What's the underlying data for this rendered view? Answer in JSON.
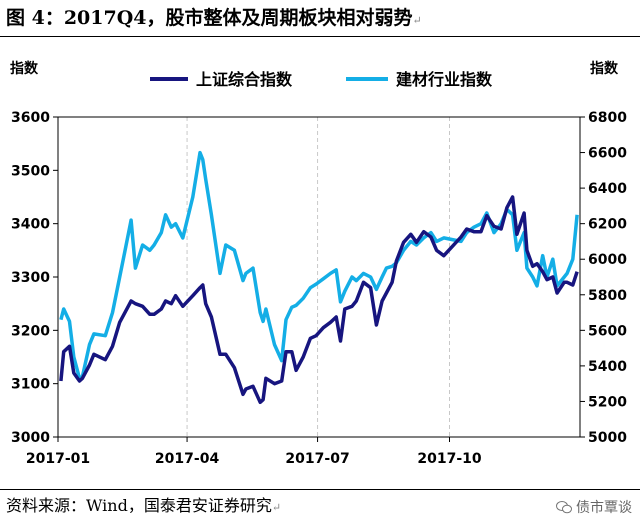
{
  "header": {
    "title": "图 4：2017Q4，股市整体及周期板块相对弱势",
    "return_mark": "↵"
  },
  "footer": {
    "source": "资料来源：Wind，国泰君安证券研究",
    "return_mark": "↵",
    "watermark": "债市覃谈"
  },
  "colors": {
    "shanghai": "#17157f",
    "building": "#14aee6",
    "grid": "#c8c8c8"
  },
  "chart_data": {
    "type": "line",
    "y_left_label": "指数",
    "y_right_label": "指数",
    "y_left_range": [
      3000,
      3600
    ],
    "y_right_range": [
      5000,
      6800
    ],
    "y_left_ticks": [
      "3000",
      "3100",
      "3200",
      "3300",
      "3400",
      "3500",
      "3600"
    ],
    "y_right_ticks": [
      "5000",
      "5200",
      "5400",
      "5600",
      "5800",
      "6000",
      "6200",
      "6400",
      "6600",
      "6800"
    ],
    "x_ticks": [
      "2017-01",
      "2017-04",
      "2017-07",
      "2017-10"
    ],
    "x_tick_dates": [
      "2017-01-01",
      "2017-04-01",
      "2017-07-01",
      "2017-10-01"
    ],
    "x_range": [
      "2017-01-01",
      "2017-12-31"
    ],
    "grid": "vertical dashed",
    "legend": "top",
    "series": [
      {
        "name": "上证综合指数",
        "axis": "left",
        "color": "#17157f",
        "points": [
          [
            "2017-01-03",
            3105
          ],
          [
            "2017-01-05",
            3160
          ],
          [
            "2017-01-09",
            3170
          ],
          [
            "2017-01-12",
            3120
          ],
          [
            "2017-01-16",
            3105
          ],
          [
            "2017-01-18",
            3110
          ],
          [
            "2017-01-23",
            3135
          ],
          [
            "2017-01-26",
            3155
          ],
          [
            "2017-02-03",
            3145
          ],
          [
            "2017-02-08",
            3170
          ],
          [
            "2017-02-13",
            3215
          ],
          [
            "2017-02-16",
            3230
          ],
          [
            "2017-02-21",
            3255
          ],
          [
            "2017-02-24",
            3250
          ],
          [
            "2017-03-01",
            3245
          ],
          [
            "2017-03-06",
            3230
          ],
          [
            "2017-03-09",
            3230
          ],
          [
            "2017-03-14",
            3240
          ],
          [
            "2017-03-17",
            3255
          ],
          [
            "2017-03-21",
            3250
          ],
          [
            "2017-03-24",
            3265
          ],
          [
            "2017-03-29",
            3245
          ],
          [
            "2017-04-05",
            3265
          ],
          [
            "2017-04-10",
            3280
          ],
          [
            "2017-04-12",
            3285
          ],
          [
            "2017-04-14",
            3250
          ],
          [
            "2017-04-18",
            3225
          ],
          [
            "2017-04-24",
            3155
          ],
          [
            "2017-04-28",
            3155
          ],
          [
            "2017-05-04",
            3130
          ],
          [
            "2017-05-10",
            3080
          ],
          [
            "2017-05-12",
            3090
          ],
          [
            "2017-05-17",
            3095
          ],
          [
            "2017-05-22",
            3065
          ],
          [
            "2017-05-24",
            3070
          ],
          [
            "2017-05-26",
            3110
          ],
          [
            "2017-06-01",
            3100
          ],
          [
            "2017-06-06",
            3105
          ],
          [
            "2017-06-09",
            3160
          ],
          [
            "2017-06-13",
            3160
          ],
          [
            "2017-06-16",
            3125
          ],
          [
            "2017-06-21",
            3150
          ],
          [
            "2017-06-26",
            3185
          ],
          [
            "2017-06-30",
            3190
          ],
          [
            "2017-07-05",
            3205
          ],
          [
            "2017-07-10",
            3215
          ],
          [
            "2017-07-14",
            3225
          ],
          [
            "2017-07-17",
            3180
          ],
          [
            "2017-07-20",
            3240
          ],
          [
            "2017-07-25",
            3245
          ],
          [
            "2017-07-28",
            3255
          ],
          [
            "2017-08-02",
            3290
          ],
          [
            "2017-08-07",
            3280
          ],
          [
            "2017-08-11",
            3210
          ],
          [
            "2017-08-15",
            3255
          ],
          [
            "2017-08-18",
            3270
          ],
          [
            "2017-08-22",
            3290
          ],
          [
            "2017-08-25",
            3330
          ],
          [
            "2017-08-30",
            3365
          ],
          [
            "2017-09-04",
            3380
          ],
          [
            "2017-09-08",
            3365
          ],
          [
            "2017-09-13",
            3385
          ],
          [
            "2017-09-18",
            3375
          ],
          [
            "2017-09-22",
            3350
          ],
          [
            "2017-09-27",
            3340
          ],
          [
            "2017-10-09",
            3375
          ],
          [
            "2017-10-13",
            3390
          ],
          [
            "2017-10-18",
            3385
          ],
          [
            "2017-10-23",
            3385
          ],
          [
            "2017-10-27",
            3415
          ],
          [
            "2017-11-01",
            3395
          ],
          [
            "2017-11-06",
            3390
          ],
          [
            "2017-11-10",
            3430
          ],
          [
            "2017-11-14",
            3450
          ],
          [
            "2017-11-17",
            3380
          ],
          [
            "2017-11-22",
            3420
          ],
          [
            "2017-11-24",
            3350
          ],
          [
            "2017-11-28",
            3320
          ],
          [
            "2017-12-01",
            3325
          ],
          [
            "2017-12-05",
            3310
          ],
          [
            "2017-12-08",
            3295
          ],
          [
            "2017-12-12",
            3300
          ],
          [
            "2017-12-15",
            3270
          ],
          [
            "2017-12-20",
            3290
          ],
          [
            "2017-12-22",
            3290
          ],
          [
            "2017-12-26",
            3285
          ],
          [
            "2017-12-29",
            3310
          ]
        ]
      },
      {
        "name": "建材行业指数",
        "axis": "right",
        "color": "#14aee6",
        "points": [
          [
            "2017-01-03",
            5660
          ],
          [
            "2017-01-05",
            5720
          ],
          [
            "2017-01-09",
            5650
          ],
          [
            "2017-01-12",
            5450
          ],
          [
            "2017-01-16",
            5330
          ],
          [
            "2017-01-18",
            5340
          ],
          [
            "2017-01-23",
            5520
          ],
          [
            "2017-01-26",
            5580
          ],
          [
            "2017-02-03",
            5570
          ],
          [
            "2017-02-08",
            5700
          ],
          [
            "2017-02-13",
            5900
          ],
          [
            "2017-02-16",
            6020
          ],
          [
            "2017-02-21",
            6220
          ],
          [
            "2017-02-24",
            5950
          ],
          [
            "2017-03-01",
            6080
          ],
          [
            "2017-03-06",
            6050
          ],
          [
            "2017-03-09",
            6080
          ],
          [
            "2017-03-14",
            6150
          ],
          [
            "2017-03-17",
            6250
          ],
          [
            "2017-03-21",
            6180
          ],
          [
            "2017-03-24",
            6200
          ],
          [
            "2017-03-29",
            6120
          ],
          [
            "2017-04-05",
            6350
          ],
          [
            "2017-04-10",
            6600
          ],
          [
            "2017-04-12",
            6560
          ],
          [
            "2017-04-14",
            6450
          ],
          [
            "2017-04-18",
            6250
          ],
          [
            "2017-04-24",
            5920
          ],
          [
            "2017-04-28",
            6080
          ],
          [
            "2017-05-04",
            6050
          ],
          [
            "2017-05-10",
            5880
          ],
          [
            "2017-05-12",
            5920
          ],
          [
            "2017-05-17",
            5950
          ],
          [
            "2017-05-22",
            5700
          ],
          [
            "2017-05-24",
            5650
          ],
          [
            "2017-05-26",
            5720
          ],
          [
            "2017-06-01",
            5520
          ],
          [
            "2017-06-06",
            5430
          ],
          [
            "2017-06-09",
            5660
          ],
          [
            "2017-06-13",
            5730
          ],
          [
            "2017-06-16",
            5740
          ],
          [
            "2017-06-21",
            5780
          ],
          [
            "2017-06-26",
            5840
          ],
          [
            "2017-06-30",
            5860
          ],
          [
            "2017-07-05",
            5890
          ],
          [
            "2017-07-10",
            5920
          ],
          [
            "2017-07-14",
            5940
          ],
          [
            "2017-07-17",
            5760
          ],
          [
            "2017-07-20",
            5820
          ],
          [
            "2017-07-25",
            5900
          ],
          [
            "2017-07-28",
            5880
          ],
          [
            "2017-08-02",
            5920
          ],
          [
            "2017-08-07",
            5900
          ],
          [
            "2017-08-11",
            5830
          ],
          [
            "2017-08-15",
            5900
          ],
          [
            "2017-08-18",
            5950
          ],
          [
            "2017-08-22",
            5960
          ],
          [
            "2017-08-25",
            5980
          ],
          [
            "2017-08-30",
            6050
          ],
          [
            "2017-09-04",
            6100
          ],
          [
            "2017-09-08",
            6080
          ],
          [
            "2017-09-13",
            6120
          ],
          [
            "2017-09-18",
            6150
          ],
          [
            "2017-09-22",
            6100
          ],
          [
            "2017-09-27",
            6120
          ],
          [
            "2017-10-09",
            6100
          ],
          [
            "2017-10-13",
            6150
          ],
          [
            "2017-10-18",
            6180
          ],
          [
            "2017-10-23",
            6200
          ],
          [
            "2017-10-27",
            6260
          ],
          [
            "2017-11-01",
            6150
          ],
          [
            "2017-11-06",
            6200
          ],
          [
            "2017-11-10",
            6280
          ],
          [
            "2017-11-14",
            6250
          ],
          [
            "2017-11-17",
            6050
          ],
          [
            "2017-11-22",
            6150
          ],
          [
            "2017-11-24",
            5950
          ],
          [
            "2017-11-28",
            5900
          ],
          [
            "2017-12-01",
            5850
          ],
          [
            "2017-12-05",
            6020
          ],
          [
            "2017-12-08",
            5900
          ],
          [
            "2017-12-12",
            6000
          ],
          [
            "2017-12-15",
            5850
          ],
          [
            "2017-12-20",
            5900
          ],
          [
            "2017-12-22",
            5920
          ],
          [
            "2017-12-26",
            6000
          ],
          [
            "2017-12-29",
            6250
          ]
        ]
      }
    ]
  }
}
